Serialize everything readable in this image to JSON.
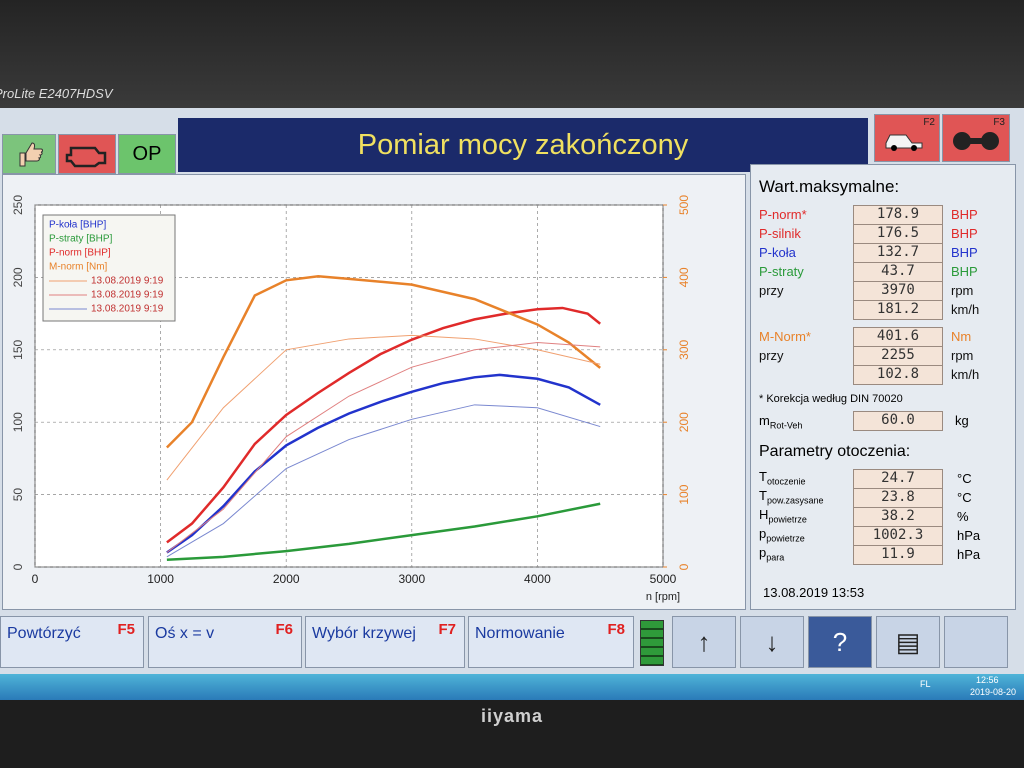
{
  "monitor": {
    "model": "ProLite E2407HDSV",
    "brand": "iiyama"
  },
  "header": {
    "button": "OP",
    "title": "Pomiar mocy zakończony",
    "f2": "F2",
    "f3": "F3"
  },
  "chart_data": {
    "type": "line",
    "x_label": "n [rpm]",
    "xlim": [
      0,
      5000
    ],
    "xticks": [
      0,
      1000,
      2000,
      3000,
      4000,
      5000
    ],
    "ylim": [
      0,
      250
    ],
    "yticks": [
      0,
      50,
      100,
      150,
      200,
      250
    ],
    "y2lim": [
      0,
      500
    ],
    "y2ticks": [
      0,
      100,
      200,
      300,
      400,
      500
    ],
    "y2color": "#e8822a",
    "grid": true,
    "legend": "upper left",
    "series": [
      {
        "name": "P-koła [BHP]",
        "color": "#2233cc",
        "line_width": 2.5,
        "x": [
          1050,
          1250,
          1500,
          1750,
          2000,
          2250,
          2500,
          2750,
          3000,
          3250,
          3500,
          3700,
          4000,
          4250,
          4500
        ],
        "values": [
          10,
          22,
          42,
          66,
          84,
          96,
          106,
          114,
          121,
          127,
          131,
          132.7,
          130,
          124,
          112
        ]
      },
      {
        "name": "P-straty [BHP]",
        "color": "#2a9a3a",
        "line_width": 2.5,
        "x": [
          1050,
          1500,
          2000,
          2500,
          3000,
          3500,
          4000,
          4500
        ],
        "values": [
          5,
          7,
          11,
          16,
          22,
          28,
          35,
          43.7
        ]
      },
      {
        "name": "P-norm [BHP]",
        "color": "#e02a2a",
        "line_width": 2.5,
        "x": [
          1050,
          1250,
          1500,
          1750,
          2000,
          2250,
          2500,
          2750,
          3000,
          3250,
          3500,
          3750,
          4000,
          4200,
          4400,
          4500
        ],
        "values": [
          17,
          30,
          55,
          85,
          105,
          120,
          134,
          147,
          157,
          165,
          171,
          175,
          178,
          178.9,
          175,
          168
        ]
      },
      {
        "name": "M-norm [Nm]",
        "color": "#e8822a",
        "line_width": 2.5,
        "axis": "y2",
        "x": [
          1050,
          1250,
          1500,
          1750,
          2000,
          2255,
          2500,
          3000,
          3500,
          4000,
          4250,
          4500
        ],
        "values": [
          165,
          200,
          290,
          375,
          396,
          401.6,
          398,
          390,
          370,
          335,
          310,
          275
        ]
      },
      {
        "name": "13.08.2019 9:19",
        "color": "#f0a070",
        "line_width": 1,
        "axis": "y2",
        "x": [
          1050,
          1500,
          2000,
          2500,
          3000,
          3500,
          4000,
          4500
        ],
        "values": [
          120,
          220,
          300,
          315,
          320,
          315,
          300,
          280
        ]
      },
      {
        "name": "13.08.2019 9:19",
        "color": "#e08080",
        "line_width": 1,
        "x": [
          1050,
          1500,
          2000,
          2500,
          3000,
          3500,
          4000,
          4500
        ],
        "values": [
          10,
          40,
          90,
          118,
          138,
          150,
          155,
          152
        ]
      },
      {
        "name": "13.08.2019 9:19",
        "color": "#7a88d0",
        "line_width": 1,
        "x": [
          1050,
          1500,
          2000,
          2500,
          3000,
          3500,
          4000,
          4500
        ],
        "values": [
          7,
          30,
          68,
          88,
          102,
          112,
          110,
          97
        ]
      }
    ]
  },
  "panel": {
    "title": "Wart.maksymalne:",
    "power_rows": [
      {
        "label": "P-norm*",
        "value": 178.9,
        "unit": "BHP",
        "color": "#e02a2a"
      },
      {
        "label": "P-silnik",
        "value": 176.5,
        "unit": "BHP",
        "color": "#e02a2a"
      },
      {
        "label": "P-koła",
        "value": 132.7,
        "unit": "BHP",
        "color": "#2233cc"
      },
      {
        "label": "P-straty",
        "value": 43.7,
        "unit": "BHP",
        "color": "#2a9a3a"
      },
      {
        "label": "przy",
        "value": 3970,
        "unit": "rpm",
        "color": "#111111"
      },
      {
        "value": 181.2,
        "unit": "km/h",
        "color": "#111111"
      }
    ],
    "torque_rows": [
      {
        "label": "M-Norm*",
        "value": 401.6,
        "unit": "Nm",
        "color": "#e8822a"
      },
      {
        "label": "przy",
        "value": 2255,
        "unit": "rpm",
        "color": "#111111"
      },
      {
        "value": 102.8,
        "unit": "km/h",
        "color": "#111111"
      }
    ],
    "note": "* Korekcja według DIN 70020",
    "mass": {
      "label": "m",
      "sub": "Rot-Veh",
      "value": "60.0",
      "unit": "kg"
    },
    "env_title": "Parametry otoczenia:",
    "env_rows": [
      {
        "label": "T",
        "sub": "otoczenie",
        "value": 24.7,
        "unit": "°C"
      },
      {
        "label": "T",
        "sub": "pow.zasysane",
        "value": 23.8,
        "unit": "°C"
      },
      {
        "label": "H",
        "sub": "powietrze",
        "value": 38.2,
        "unit": "%"
      },
      {
        "label": "p",
        "sub": "powietrze",
        "value": 1002.3,
        "unit": "hPa"
      },
      {
        "label": "p",
        "sub": "para",
        "value": 11.9,
        "unit": "hPa"
      }
    ],
    "datetime": "13.08.2019  13:53"
  },
  "toolbar": [
    {
      "label": "Powtórzyć",
      "key": "F5"
    },
    {
      "label": "Oś x = v",
      "key": "F6"
    },
    {
      "label": "Wybór krzywej",
      "key": "F7"
    },
    {
      "label": "Normowanie",
      "key": "F8"
    }
  ],
  "taskbar": {
    "lang": "FL",
    "time": "12:56",
    "date": "2019-08-20"
  }
}
